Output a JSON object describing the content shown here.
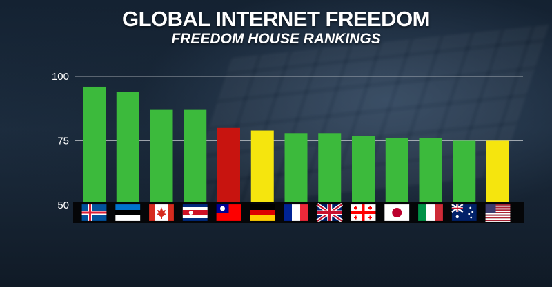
{
  "title": "GLOBAL INTERNET FREEDOM",
  "subtitle": "FREEDOM HOUSE RANKINGS",
  "colors": {
    "background": "#142232",
    "free": "#3cba3c",
    "partly_free": "#f5e50e",
    "not_free": "#c8140f",
    "gridline": "#c8ccd0"
  },
  "chart_data": {
    "type": "bar",
    "title": "GLOBAL INTERNET FREEDOM",
    "subtitle": "FREEDOM HOUSE RANKINGS",
    "xlabel": "",
    "ylabel": "",
    "ylim": [
      50,
      100
    ],
    "yticks": [
      "50",
      "75",
      "100"
    ],
    "grid": true,
    "categories": [
      "iceland-flag-icon",
      "estonia-flag-icon",
      "canada-flag-icon",
      "costa-rica-flag-icon",
      "taiwan-flag-icon",
      "germany-flag-icon",
      "france-flag-icon",
      "uk-flag-icon",
      "georgia-flag-icon",
      "japan-flag-icon",
      "italy-flag-icon",
      "australia-flag-icon",
      "usa-flag-icon"
    ],
    "values": [
      96,
      94,
      87,
      87,
      80,
      79,
      78,
      78,
      77,
      76,
      76,
      75,
      75
    ],
    "bar_colors": [
      "#3cba3c",
      "#3cba3c",
      "#3cba3c",
      "#3cba3c",
      "#c8140f",
      "#f5e50e",
      "#3cba3c",
      "#3cba3c",
      "#3cba3c",
      "#3cba3c",
      "#3cba3c",
      "#3cba3c",
      "#f5e50e"
    ]
  }
}
